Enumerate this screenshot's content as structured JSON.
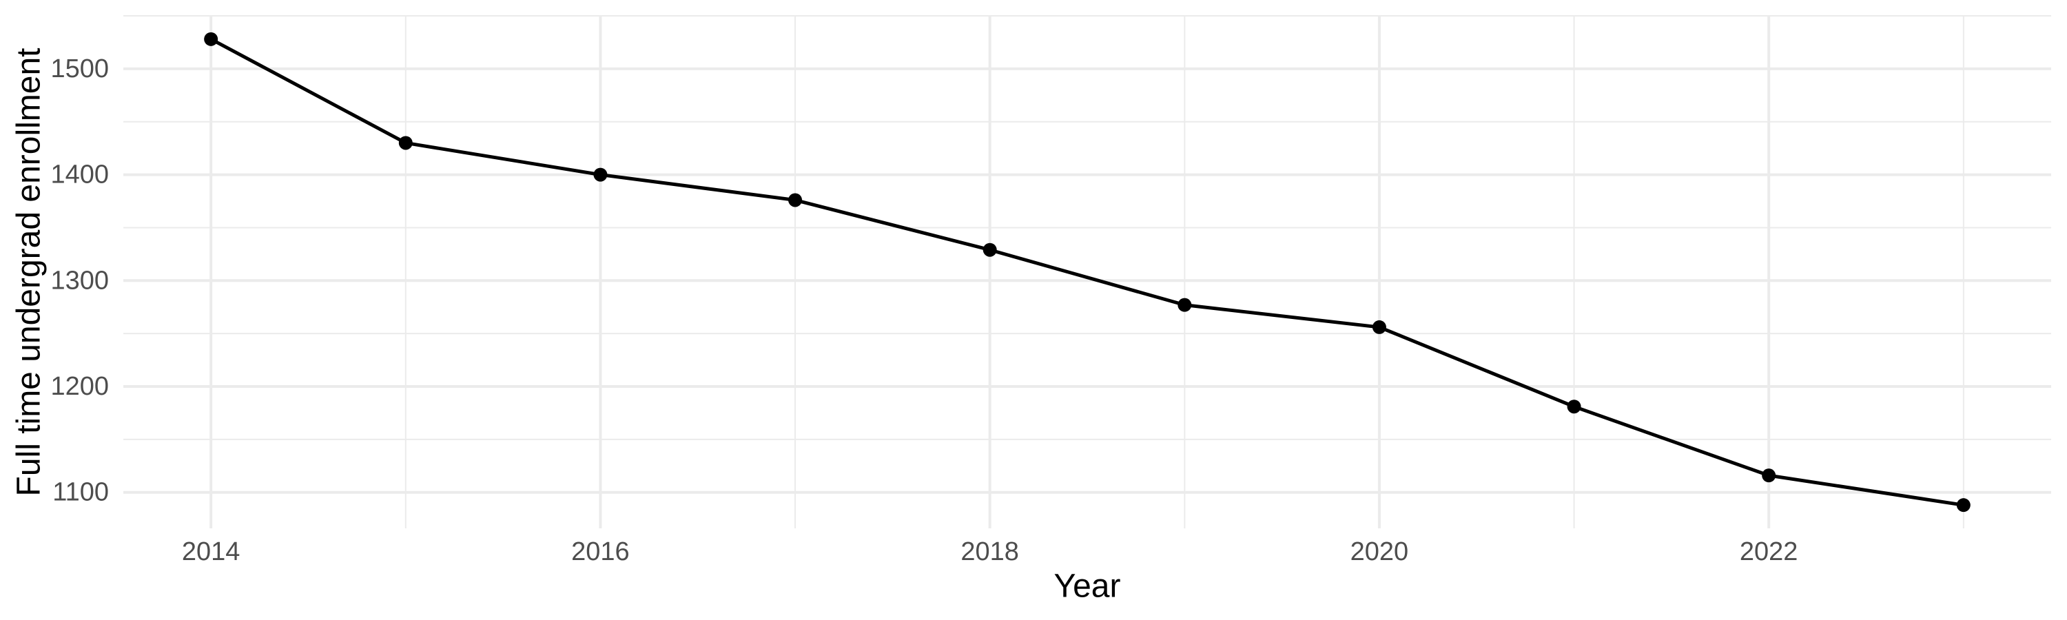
{
  "chart_data": {
    "type": "line",
    "xlabel": "Year",
    "ylabel": "Full time undergrad enrollment",
    "x": [
      2014,
      2015,
      2016,
      2017,
      2018,
      2019,
      2020,
      2021,
      2022,
      2023
    ],
    "series": [
      {
        "name": "Full time undergrad enrollment",
        "values": [
          1528,
          1430,
          1400,
          1376,
          1329,
          1277,
          1256,
          1181,
          1116,
          1088
        ]
      }
    ],
    "x_domain": [
      2013.55,
      2023.45
    ],
    "y_domain": [
      1066,
      1550
    ],
    "x_major_ticks": [
      2014,
      2016,
      2018,
      2020,
      2022
    ],
    "x_minor_gridlines": [
      2015,
      2017,
      2019,
      2021,
      2023
    ],
    "y_major_ticks": [
      1100,
      1200,
      1300,
      1400,
      1500
    ],
    "y_minor_gridlines": [
      1150,
      1250,
      1350,
      1450,
      1550
    ],
    "grid": "major-and-minor",
    "legend_position": "none",
    "marker": "point",
    "colors": {
      "line": "#000000",
      "point": "#000000",
      "grid_major": "#EBEBEB",
      "grid_minor": "#EBEBEB",
      "tick_label": "#4D4D4D",
      "axis_title": "#000000",
      "background": "#FFFFFF"
    }
  }
}
